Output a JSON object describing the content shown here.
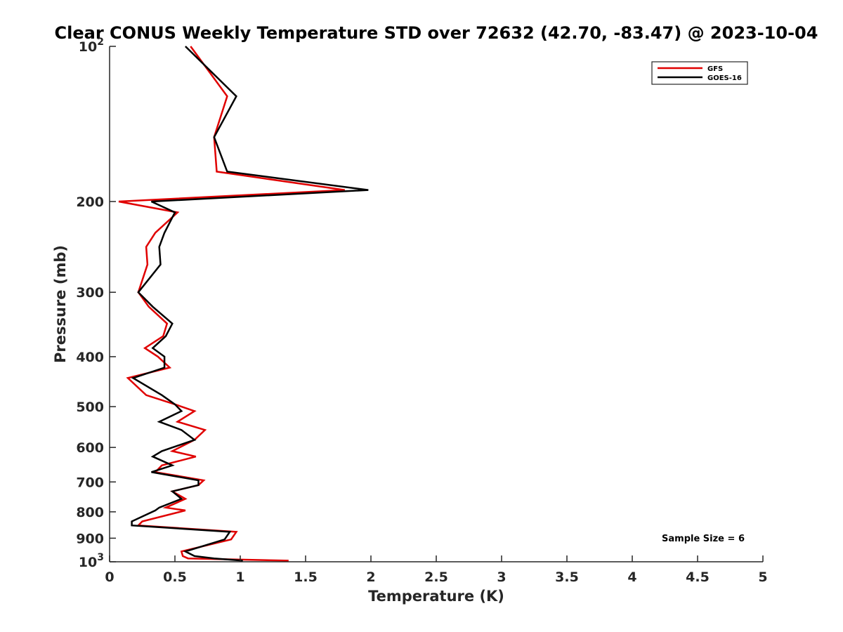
{
  "chart_data": {
    "type": "line",
    "title": "Clear CONUS Weekly Temperature STD over 72632 (42.70, -83.47) @ 2023-10-04",
    "xlabel": "Temperature (K)",
    "ylabel": "Pressure (mb)",
    "xlim": [
      0,
      5
    ],
    "ylim": [
      100,
      1000
    ],
    "y_scale": "log",
    "y_reversed": true,
    "x_ticks": [
      "0",
      "0.5",
      "1",
      "1.5",
      "2",
      "2.5",
      "3",
      "3.5",
      "4",
      "4.5",
      "5"
    ],
    "x_tick_values": [
      0,
      0.5,
      1,
      1.5,
      2,
      2.5,
      3,
      3.5,
      4,
      4.5,
      5
    ],
    "y_ticks": [
      {
        "value": 100,
        "base": "10",
        "exp": "2"
      },
      {
        "value": 200,
        "label": "200"
      },
      {
        "value": 300,
        "label": "300"
      },
      {
        "value": 400,
        "label": "400"
      },
      {
        "value": 500,
        "label": "500"
      },
      {
        "value": 600,
        "label": "600"
      },
      {
        "value": 700,
        "label": "700"
      },
      {
        "value": 800,
        "label": "800"
      },
      {
        "value": 900,
        "label": "900"
      },
      {
        "value": 1000,
        "base": "10",
        "exp": "3"
      }
    ],
    "grid": false,
    "legend_position": "top-right",
    "annotation": "Sample Size = 6",
    "series": [
      {
        "name": "GFS",
        "color": "#e00000",
        "points": [
          [
            0.62,
            100
          ],
          [
            0.9,
            125
          ],
          [
            0.8,
            150
          ],
          [
            0.82,
            175
          ],
          [
            1.8,
            190
          ],
          [
            0.07,
            200
          ],
          [
            0.52,
            210
          ],
          [
            0.35,
            230
          ],
          [
            0.28,
            245
          ],
          [
            0.29,
            265
          ],
          [
            0.22,
            300
          ],
          [
            0.3,
            320
          ],
          [
            0.44,
            345
          ],
          [
            0.41,
            365
          ],
          [
            0.27,
            385
          ],
          [
            0.37,
            400
          ],
          [
            0.46,
            420
          ],
          [
            0.14,
            440
          ],
          [
            0.28,
            475
          ],
          [
            0.5,
            495
          ],
          [
            0.65,
            510
          ],
          [
            0.52,
            535
          ],
          [
            0.73,
            555
          ],
          [
            0.65,
            580
          ],
          [
            0.48,
            610
          ],
          [
            0.66,
            625
          ],
          [
            0.4,
            650
          ],
          [
            0.35,
            670
          ],
          [
            0.72,
            695
          ],
          [
            0.68,
            710
          ],
          [
            0.48,
            730
          ],
          [
            0.58,
            755
          ],
          [
            0.43,
            785
          ],
          [
            0.58,
            795
          ],
          [
            0.25,
            835
          ],
          [
            0.22,
            850
          ],
          [
            0.97,
            875
          ],
          [
            0.93,
            905
          ],
          [
            0.55,
            955
          ],
          [
            0.56,
            975
          ],
          [
            0.6,
            985
          ],
          [
            1.37,
            995
          ]
        ]
      },
      {
        "name": "GOES-16",
        "color": "#000000",
        "points": [
          [
            0.58,
            100
          ],
          [
            0.97,
            125
          ],
          [
            0.8,
            150
          ],
          [
            0.9,
            175
          ],
          [
            1.98,
            190
          ],
          [
            0.32,
            200
          ],
          [
            0.5,
            210
          ],
          [
            0.42,
            230
          ],
          [
            0.38,
            245
          ],
          [
            0.39,
            265
          ],
          [
            0.22,
            300
          ],
          [
            0.33,
            320
          ],
          [
            0.48,
            345
          ],
          [
            0.43,
            365
          ],
          [
            0.33,
            385
          ],
          [
            0.42,
            400
          ],
          [
            0.42,
            420
          ],
          [
            0.18,
            440
          ],
          [
            0.4,
            475
          ],
          [
            0.5,
            495
          ],
          [
            0.55,
            510
          ],
          [
            0.38,
            535
          ],
          [
            0.55,
            555
          ],
          [
            0.65,
            580
          ],
          [
            0.4,
            610
          ],
          [
            0.33,
            625
          ],
          [
            0.48,
            650
          ],
          [
            0.32,
            670
          ],
          [
            0.68,
            695
          ],
          [
            0.68,
            710
          ],
          [
            0.48,
            730
          ],
          [
            0.55,
            755
          ],
          [
            0.38,
            785
          ],
          [
            0.35,
            795
          ],
          [
            0.17,
            835
          ],
          [
            0.17,
            850
          ],
          [
            0.92,
            875
          ],
          [
            0.88,
            905
          ],
          [
            0.58,
            955
          ],
          [
            0.65,
            975
          ],
          [
            0.8,
            985
          ],
          [
            1.02,
            995
          ]
        ]
      }
    ]
  }
}
